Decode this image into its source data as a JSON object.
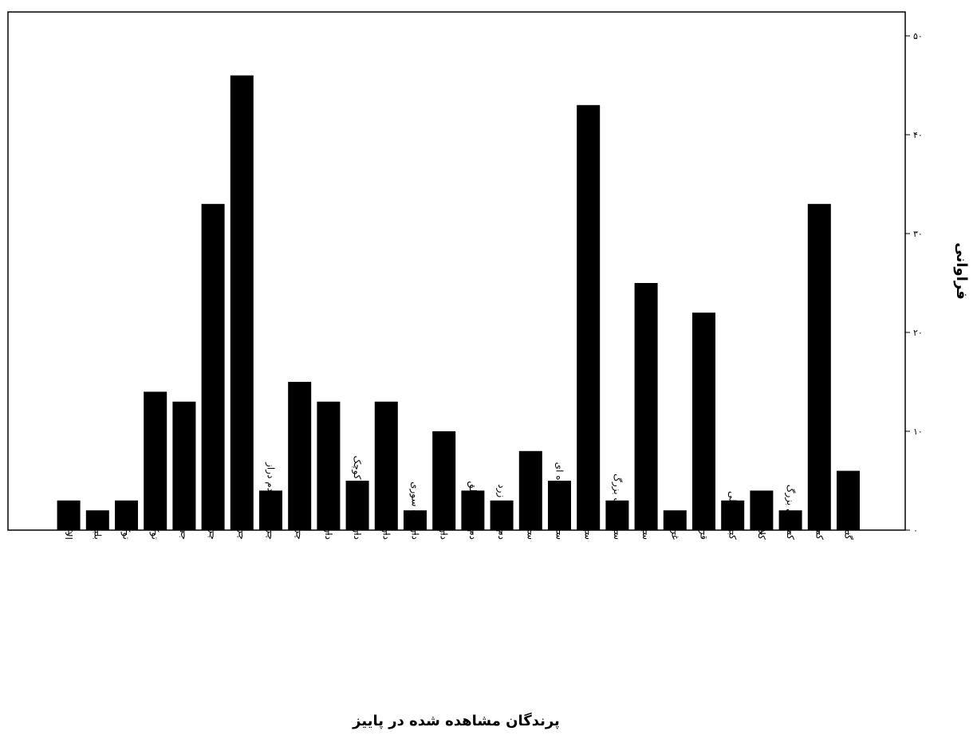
{
  "chart_data": {
    "type": "bar",
    "xlabel": "پرندگان مشاهده شده در پاییز",
    "ylabel": "فراوانی",
    "ylim": [
      0,
      50
    ],
    "yticks": [
      0,
      10,
      20,
      30,
      40,
      50
    ],
    "ytick_labels": [
      "۰",
      "۱۰",
      "۲۰",
      "۳۰",
      "۴۰",
      "۵۰"
    ],
    "y_axis_side": "right",
    "grid": false,
    "bar_color": "#000000",
    "categories": [
      "الاکلنگی",
      "بلبل",
      "توکا باغی",
      "توکا سیاه",
      "جی جاق",
      "چرخ ریسک بزرگ",
      "چرخ ریسک سر سفید",
      "چرخ ریسک دم دراز",
      "چرخ ریسک سرآبی",
      "دارکوب خالدار بزرگ",
      "دارکوب خالدار کوچک",
      "دارکوب سبز",
      "دارکوب سوری",
      "دارکوب سیاه",
      "دم جنبانک ابلق",
      "دم جنبانک زرد",
      "سسک جنبک جاف",
      "سسک درخشنده ای",
      "سهره جنگلی",
      "سهره نوک بزرگ",
      "سینه سرخ",
      "غراب",
      "قرقاول",
      "کبوتر جنگلی",
      "کلاغ ابلق",
      "کمرکلی بزرگ",
      "کمرکلی جنگلی",
      "گنجشک جنگلی"
    ],
    "values": [
      3,
      2,
      3,
      14,
      13,
      33,
      46,
      4,
      15,
      13,
      5,
      13,
      2,
      10,
      4,
      3,
      8,
      5,
      43,
      3,
      25,
      2,
      22,
      3,
      4,
      2,
      33,
      6
    ]
  }
}
